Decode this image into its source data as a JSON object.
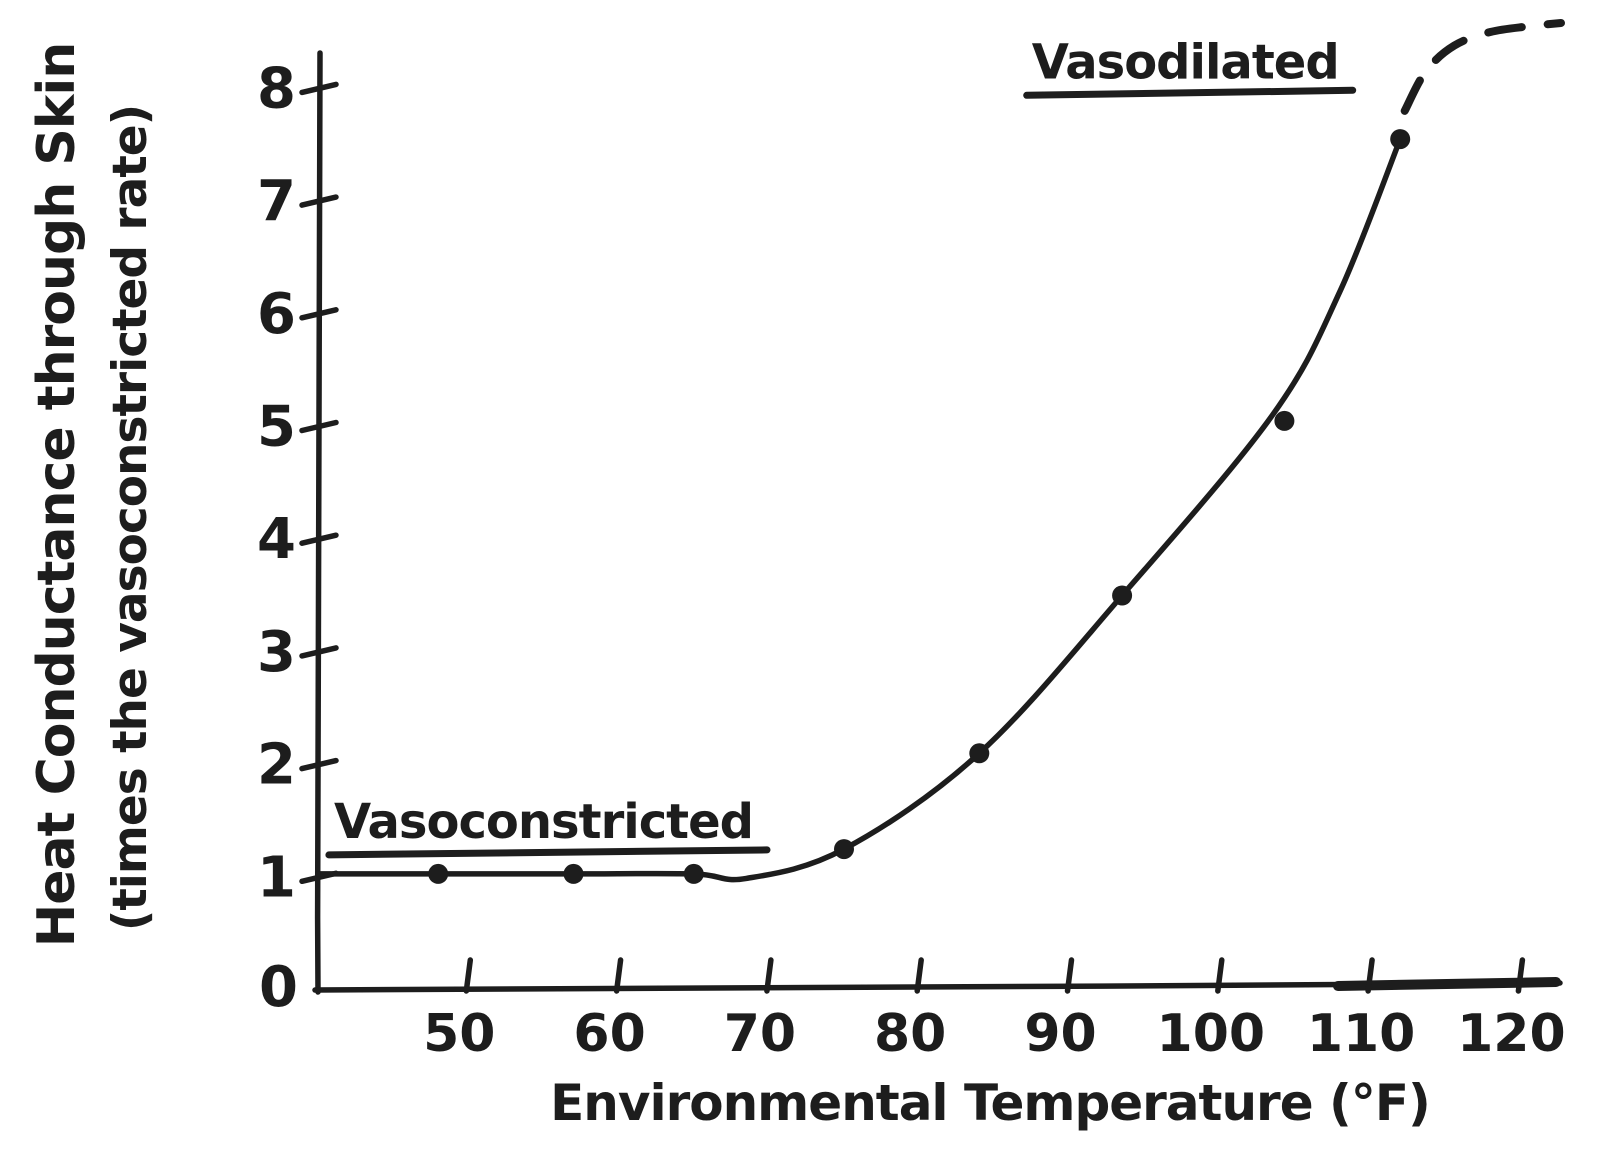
{
  "page": {
    "background": "#ffffff",
    "ink_color": "#1d1d1d",
    "style": "hand-drawn"
  },
  "chart_data": {
    "type": "line",
    "title": "",
    "xlabel": "Environmental Temperature (°F)",
    "ylabel_line1": "Heat Conductance through Skin",
    "ylabel_line2": "(times the vasoconstricted rate)",
    "grid": false,
    "legend": "none",
    "x_axis": {
      "min": 40,
      "max": 123,
      "ticks": [
        50,
        60,
        70,
        80,
        90,
        100,
        110,
        120
      ]
    },
    "y_axis": {
      "min": 0,
      "max": 8.6,
      "ticks": [
        1,
        2,
        3,
        4,
        5,
        6,
        7,
        8
      ],
      "origin_label": "0"
    },
    "annotations": [
      {
        "id": "vasoconstricted",
        "text": "Vasoconstricted",
        "x": 55,
        "y": 1.35,
        "underline": true
      },
      {
        "id": "vasodilated",
        "text": "Vasodilated",
        "x": 97.7,
        "y": 8.09,
        "underline": true
      }
    ],
    "series": [
      {
        "name": "measured",
        "style": "solid",
        "curve_x": [
          40,
          48,
          57,
          65,
          68.5,
          75,
          84,
          93.5,
          103.5,
          108,
          112
        ],
        "curve_y": [
          1.03,
          1.03,
          1.03,
          1.03,
          0.99,
          1.25,
          2.1,
          3.5,
          5.1,
          6.2,
          7.55
        ],
        "points_x": [
          48,
          57,
          65,
          75,
          84,
          93.5,
          104.3,
          112
        ],
        "points_y": [
          1.03,
          1.03,
          1.03,
          1.25,
          2.1,
          3.5,
          5.05,
          7.55
        ]
      },
      {
        "name": "extrapolated",
        "style": "dashed",
        "curve_x": [
          112.3,
          113.7,
          115.6,
          118,
          120.5,
          122.7
        ],
        "curve_y": [
          7.8,
          8.15,
          8.38,
          8.5,
          8.55,
          8.58
        ],
        "points_x": [],
        "points_y": []
      }
    ]
  }
}
